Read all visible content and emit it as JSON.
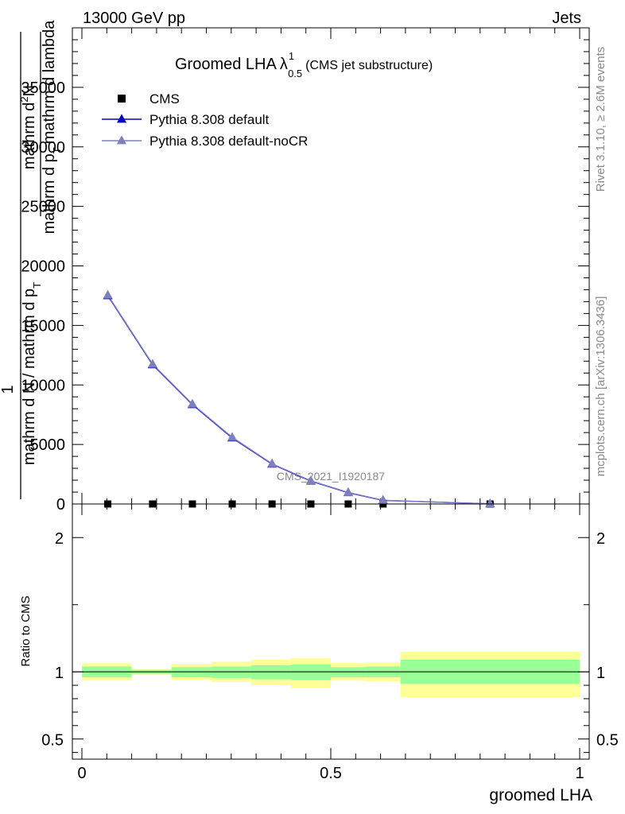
{
  "header": {
    "energy_label": "13000 GeV pp",
    "process_label": "Jets"
  },
  "side_labels": {
    "rivet": "Rivet 3.1.10, ≥ 2.6M events",
    "mcplots": "mcplots.cern.ch [arXiv:1306.3436]"
  },
  "chart_data": [
    {
      "type": "line",
      "title": "Groomed LHA",
      "title_lambda": "λ",
      "title_sup": "1",
      "title_sub": "0.5",
      "subtitle": "(CMS jet substructure)",
      "xlabel": "groomed LHA",
      "ylabel_numerator": "mathrm d",
      "ylabel_numerator_sup": "2",
      "ylabel_numerator_n": "N",
      "ylabel_denominator": "mathrm d p",
      "ylabel_denominator_sub": "T",
      "ylabel_denominator_tail": "mathrm d lambda",
      "ylabel_prefix_num": "1",
      "ylabel_prefix_den": "mathrm d N / mathrm d p",
      "ylabel_prefix_den_sub": "T",
      "watermark": "CMS_2021_I1920187",
      "xlim": [
        0,
        1
      ],
      "ylim": [
        0,
        40000
      ],
      "y_ticks": [
        0,
        5000,
        10000,
        15000,
        20000,
        25000,
        30000,
        35000
      ],
      "y_tick_labels": [
        "0",
        "5000",
        "10000",
        "15000",
        "20000",
        "25000",
        "30000",
        "35000"
      ],
      "legend_position": "top-left",
      "series": [
        {
          "name": "CMS",
          "marker": "square",
          "color": "#000000",
          "x": [
            0.052,
            0.142,
            0.222,
            0.302,
            0.382,
            0.46,
            0.535,
            0.605,
            0.82
          ],
          "y": [
            0,
            0,
            0,
            0,
            0,
            0,
            0,
            0,
            0
          ]
        },
        {
          "name": "Pythia 8.308 default",
          "marker": "triangle",
          "color": "#0000cc",
          "x": [
            0.052,
            0.142,
            0.222,
            0.302,
            0.382,
            0.46,
            0.535,
            0.605,
            0.82
          ],
          "y": [
            17500,
            11700,
            8350,
            5550,
            3350,
            1920,
            950,
            300,
            15
          ]
        },
        {
          "name": "Pythia 8.308 default-noCR",
          "marker": "triangle",
          "color": "#7f7fbf",
          "x": [
            0.052,
            0.142,
            0.222,
            0.302,
            0.382,
            0.46,
            0.535,
            0.605,
            0.82
          ],
          "y": [
            17550,
            11750,
            8400,
            5600,
            3380,
            1950,
            970,
            310,
            15
          ]
        }
      ]
    },
    {
      "type": "area",
      "ylabel": "Ratio to CMS",
      "xlabel": "groomed LHA",
      "xlim": [
        0,
        1
      ],
      "ylim": [
        0.35,
        2.25
      ],
      "y_ticks": [
        0.5,
        1,
        2
      ],
      "y_tick_labels": [
        "0.5",
        "1",
        "2"
      ],
      "x_ticks": [
        0,
        0.5,
        1
      ],
      "x_tick_labels": [
        "0",
        "0.5",
        "1"
      ],
      "bins": [
        {
          "x0": 0.0,
          "x1": 0.1,
          "inner": [
            0.96,
            1.04
          ],
          "outer": [
            0.935,
            1.065
          ]
        },
        {
          "x0": 0.1,
          "x1": 0.18,
          "inner": [
            0.985,
            1.015
          ],
          "outer": [
            0.98,
            1.02
          ]
        },
        {
          "x0": 0.18,
          "x1": 0.26,
          "inner": [
            0.96,
            1.035
          ],
          "outer": [
            0.94,
            1.06
          ]
        },
        {
          "x0": 0.26,
          "x1": 0.34,
          "inner": [
            0.955,
            1.04
          ],
          "outer": [
            0.925,
            1.075
          ]
        },
        {
          "x0": 0.34,
          "x1": 0.42,
          "inner": [
            0.945,
            1.05
          ],
          "outer": [
            0.9,
            1.09
          ]
        },
        {
          "x0": 0.42,
          "x1": 0.5,
          "inner": [
            0.94,
            1.055
          ],
          "outer": [
            0.88,
            1.1
          ]
        },
        {
          "x0": 0.5,
          "x1": 0.57,
          "inner": [
            0.96,
            1.035
          ],
          "outer": [
            0.935,
            1.065
          ]
        },
        {
          "x0": 0.57,
          "x1": 0.64,
          "inner": [
            0.96,
            1.04
          ],
          "outer": [
            0.93,
            1.07
          ]
        },
        {
          "x0": 0.64,
          "x1": 1.0,
          "inner": [
            0.91,
            1.09
          ],
          "outer": [
            0.81,
            1.15
          ]
        }
      ],
      "colors": {
        "inner": "#99ff99",
        "outer": "#ffff99",
        "line": "#000000"
      }
    }
  ]
}
